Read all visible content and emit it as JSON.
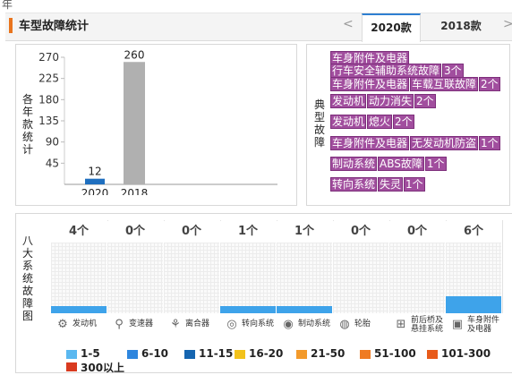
{
  "top": {
    "char": "年"
  },
  "header": {
    "title": "车型故障统计",
    "prev_arrow": "<",
    "next_arrow": ">",
    "tabs": [
      {
        "label": "2020款",
        "active": true
      },
      {
        "label": "2018款",
        "active": false
      }
    ]
  },
  "chart_data": {
    "type": "bar",
    "ylabel": "各年款统计",
    "yticks": [
      "270",
      "225",
      "180",
      "135",
      "90",
      "45"
    ],
    "ylim": [
      0,
      270
    ],
    "categories": [
      "2020",
      "2018"
    ],
    "values": [
      12,
      260
    ],
    "colors": [
      "#1f6fbf",
      "#b0b0b0"
    ],
    "value_labels": [
      "12",
      "260"
    ]
  },
  "typical": {
    "label": "典型故障",
    "faults": [
      {
        "segs": [
          "车身附件及电器"
        ]
      },
      {
        "segs": [
          "行车安全辅助系统故障",
          "3个"
        ]
      },
      {
        "segs": [
          "车身附件及电器",
          "车载互联故障",
          "2个"
        ]
      },
      {
        "segs": [
          "发动机",
          "动力消失",
          "2个"
        ]
      },
      {
        "segs": [
          "发动机",
          "熄火",
          "2个"
        ]
      },
      {
        "segs": [
          "车身附件及电器",
          "无发动机防盗",
          "1个"
        ]
      },
      {
        "segs": [
          "制动系统",
          "ABS故障",
          "1个"
        ]
      },
      {
        "segs": [
          "转向系统",
          "失灵",
          "1个"
        ]
      }
    ]
  },
  "systems": {
    "label": "八大系统故障图",
    "items": [
      {
        "name": "发动机",
        "count": "4个",
        "level": 0.1,
        "icon": "engine-icon",
        "glyph": "⚙"
      },
      {
        "name": "变速器",
        "count": "0个",
        "level": 0,
        "icon": "gear-shift-icon",
        "glyph": "⚲"
      },
      {
        "name": "离合器",
        "count": "0个",
        "level": 0,
        "icon": "clutch-icon",
        "glyph": "⚘"
      },
      {
        "name": "转向系统",
        "count": "1个",
        "level": 0.1,
        "icon": "steering-wheel-icon",
        "glyph": "◎"
      },
      {
        "name": "制动系统",
        "count": "1个",
        "level": 0.1,
        "icon": "brake-icon",
        "glyph": "◉"
      },
      {
        "name": "轮胎",
        "count": "0个",
        "level": 0,
        "icon": "tire-icon",
        "glyph": "◍"
      },
      {
        "name": "前后桥及悬挂系统",
        "name_line1": "前后桥及",
        "name_line2": "悬挂系统",
        "count": "0个",
        "level": 0,
        "icon": "suspension-icon",
        "glyph": "⊞"
      },
      {
        "name": "车身附件及电器",
        "name_line1": "车身附件",
        "name_line2": "及电器",
        "count": "6个",
        "level": 0.24,
        "icon": "car-body-icon",
        "glyph": "▣"
      }
    ],
    "bar_color": "#3ea3ea"
  },
  "legend": [
    {
      "label": "1-5",
      "color": "#5ab8f0"
    },
    {
      "label": "6-10",
      "color": "#2e86de"
    },
    {
      "label": "11-15",
      "color": "#1565b0"
    },
    {
      "label": "16-20",
      "color": "#f2c21b"
    },
    {
      "label": "21-50",
      "color": "#f39a2b"
    },
    {
      "label": "51-100",
      "color": "#ef7b22"
    },
    {
      "label": "101-300",
      "color": "#e85b1a"
    },
    {
      "label": "300以上",
      "color": "#d93a1f"
    }
  ]
}
